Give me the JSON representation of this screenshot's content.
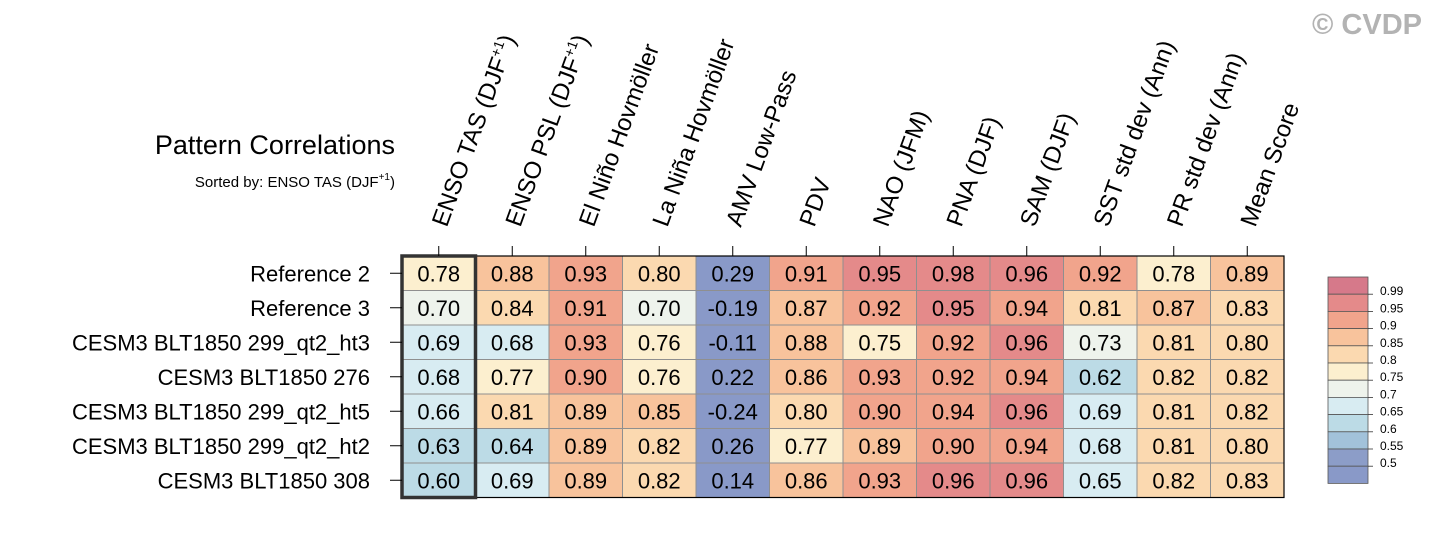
{
  "watermark": "© CVDP",
  "chart_data": {
    "type": "heatmap",
    "title": "Pattern Correlations",
    "subtitle_prefix": "Sorted by: ENSO TAS (DJF",
    "subtitle_sup": "+1",
    "subtitle_suffix": ")",
    "columns": [
      {
        "text": "ENSO TAS (DJF",
        "sup": "+1",
        "after": ")"
      },
      {
        "text": "ENSO PSL (DJF",
        "sup": "+1",
        "after": ")"
      },
      {
        "text": "El Niño Hovmöller",
        "sup": "",
        "after": ""
      },
      {
        "text": "La Niña Hovmöller",
        "sup": "",
        "after": ""
      },
      {
        "text": "AMV Low-Pass",
        "sup": "",
        "after": ""
      },
      {
        "text": "PDV",
        "sup": "",
        "after": ""
      },
      {
        "text": "NAO (JFM)",
        "sup": "",
        "after": ""
      },
      {
        "text": "PNA (DJF)",
        "sup": "",
        "after": ""
      },
      {
        "text": "SAM (DJF)",
        "sup": "",
        "after": ""
      },
      {
        "text": "SST std dev (Ann)",
        "sup": "",
        "after": ""
      },
      {
        "text": "PR std dev (Ann)",
        "sup": "",
        "after": ""
      },
      {
        "text": "Mean Score",
        "sup": "",
        "after": ""
      }
    ],
    "rows": [
      "Reference 2",
      "Reference 3",
      "CESM3 BLT1850 299_qt2_ht3",
      "CESM3 BLT1850 276",
      "CESM3 BLT1850 299_qt2_ht5",
      "CESM3 BLT1850 299_qt2_ht2",
      "CESM3 BLT1850 308"
    ],
    "values": [
      [
        0.78,
        0.88,
        0.93,
        0.8,
        0.29,
        0.91,
        0.95,
        0.98,
        0.96,
        0.92,
        0.78,
        0.89
      ],
      [
        0.7,
        0.84,
        0.91,
        0.7,
        -0.19,
        0.87,
        0.92,
        0.95,
        0.94,
        0.81,
        0.87,
        0.83
      ],
      [
        0.69,
        0.68,
        0.93,
        0.76,
        -0.11,
        0.88,
        0.75,
        0.92,
        0.96,
        0.73,
        0.81,
        0.8
      ],
      [
        0.68,
        0.77,
        0.9,
        0.76,
        0.22,
        0.86,
        0.93,
        0.92,
        0.94,
        0.62,
        0.82,
        0.82
      ],
      [
        0.66,
        0.81,
        0.89,
        0.85,
        -0.24,
        0.8,
        0.9,
        0.94,
        0.96,
        0.69,
        0.81,
        0.82
      ],
      [
        0.63,
        0.64,
        0.89,
        0.82,
        0.26,
        0.77,
        0.89,
        0.9,
        0.94,
        0.68,
        0.81,
        0.8
      ],
      [
        0.6,
        0.69,
        0.89,
        0.82,
        0.14,
        0.86,
        0.93,
        0.96,
        0.96,
        0.65,
        0.82,
        0.83
      ]
    ],
    "highlight_column": 0,
    "legend": {
      "placement": "right",
      "labels": [
        "0.99",
        "0.95",
        "0.9",
        "0.85",
        "0.8",
        "0.75",
        "0.7",
        "0.65",
        "0.6",
        "0.55",
        "0.5"
      ],
      "thresholds": [
        0.99,
        0.95,
        0.9,
        0.85,
        0.8,
        0.75,
        0.7,
        0.65,
        0.6,
        0.55,
        0.5
      ],
      "colors": [
        "#d6798a",
        "#e48a8a",
        "#f1a48c",
        "#f8c39c",
        "#fbd9b0",
        "#fcefcf",
        "#eef3ec",
        "#d8ecf2",
        "#bcdbe6",
        "#a2c2da",
        "#8c9dc8",
        "#8999c8"
      ]
    }
  }
}
